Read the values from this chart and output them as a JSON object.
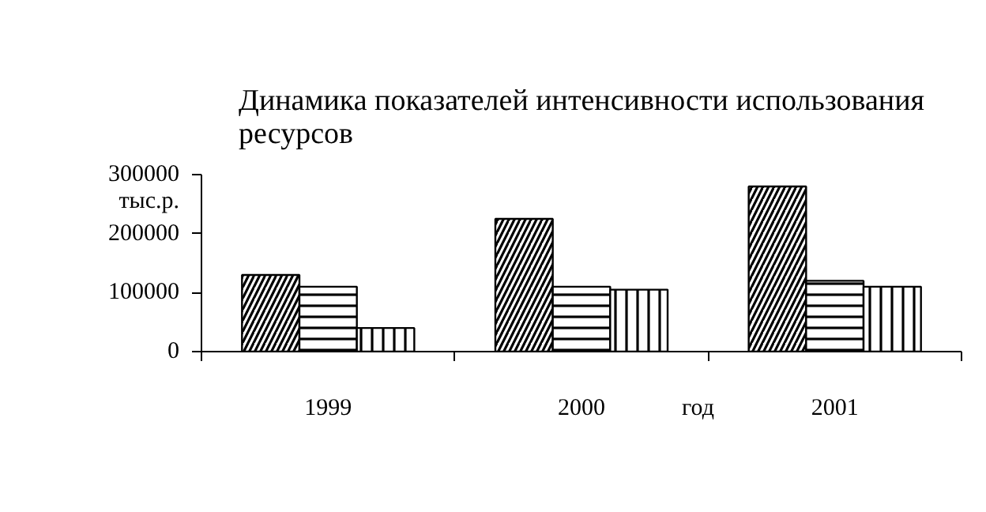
{
  "chart_data": {
    "type": "bar",
    "title": "Динамика показателей интенсивности использования\nресурсов",
    "xlabel": "год",
    "ylabel": "тыс.р.",
    "categories": [
      "1999",
      "2000",
      "2001"
    ],
    "series": [
      {
        "color": "#ffffff",
        "values": [
          130000,
          225000,
          280000
        ]
      },
      {
        "color": "#ffffff",
        "values": [
          110000,
          110000,
          120000
        ]
      },
      {
        "color": "#ffffff",
        "values": [
          40000,
          105000,
          110000
        ]
      }
    ],
    "ylim": [
      0,
      300000
    ],
    "yticks": [
      0,
      100000,
      200000,
      300000
    ],
    "grid": false
  }
}
